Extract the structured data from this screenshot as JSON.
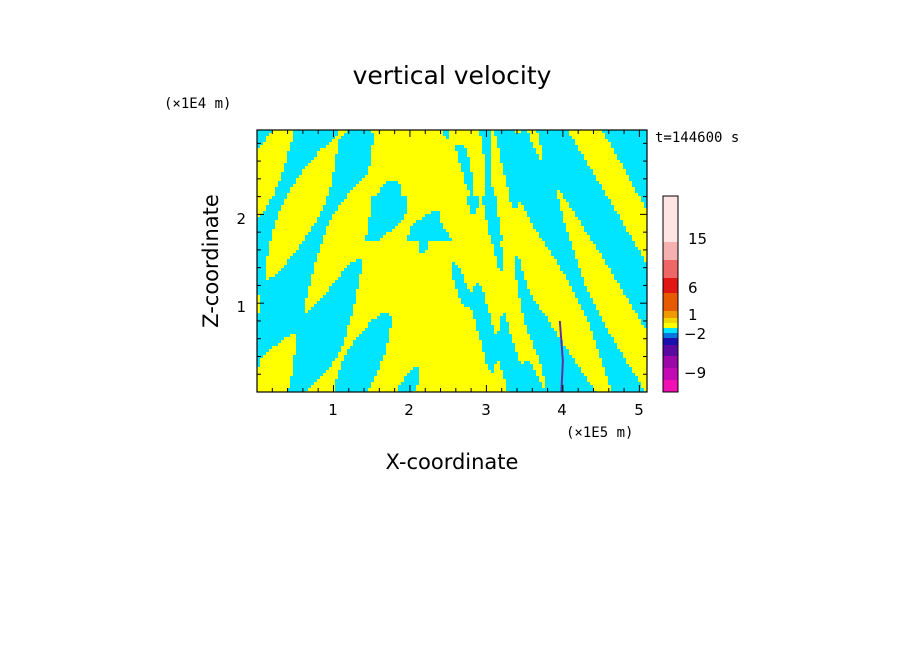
{
  "chart_data": {
    "type": "heatmap",
    "title": "vertical velocity",
    "xlabel": "X-coordinate",
    "ylabel": "Z-coordinate",
    "x_scale_label": "(×1E5 m)",
    "y_scale_label": "(×1E4 m)",
    "xlim": [
      0,
      5.1
    ],
    "ylim": [
      0,
      2.95
    ],
    "x_ticks": [
      "1",
      "2",
      "3",
      "4",
      "5"
    ],
    "y_ticks": [
      "1",
      "2"
    ],
    "time_label": "t=144600 s",
    "colorbar": {
      "levels": [
        -9,
        -2,
        1,
        6,
        15
      ],
      "tick_labels": [
        "15",
        "6",
        "1",
        "−2",
        "−9"
      ],
      "colors_top_to_bottom": [
        "#ffe4e4",
        "#f5b0b0",
        "#ee6666",
        "#e21515",
        "#e65a00",
        "#ee9a00",
        "#f0d800",
        "#ffff00",
        "#00e5ff",
        "#0078e0",
        "#1a10b0",
        "#5a0aa0",
        "#9a08a8",
        "#c40ab4",
        "#f010b4"
      ]
    },
    "dominant_colors": {
      "positive": "#ffff00",
      "negative": "#00e5ff",
      "strong": "#6030a0"
    }
  }
}
